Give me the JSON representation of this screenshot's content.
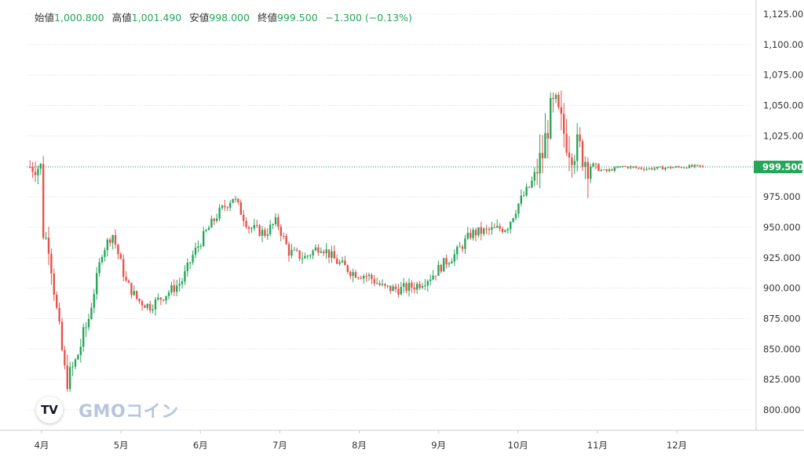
{
  "ohlc": {
    "open_label": "始値",
    "open_value": "1,000.800",
    "high_label": "高値",
    "high_value": "1,001.490",
    "low_label": "安値",
    "low_value": "998.000",
    "close_label": "終値",
    "close_value": "999.500",
    "change": "−1.300 (−0.13%)"
  },
  "brand": {
    "tv_logo": "TV",
    "gmo_logo": "GMOコイン"
  },
  "colors": {
    "up": "#26a65b",
    "down": "#e5534b",
    "grid": "#d9dde3",
    "price_line": "#26a65b",
    "axis_text": "#333333"
  },
  "chart_data": {
    "type": "candlestick",
    "y_axis": {
      "ticks": [
        800,
        825,
        850,
        875,
        900,
        925,
        950,
        975,
        1000,
        1025,
        1050,
        1075,
        1100,
        1125
      ],
      "tick_labels": [
        "800.000",
        "825.000",
        "850.000",
        "875.000",
        "900.000",
        "925.000",
        "950.000",
        "975.000",
        "1,000.000",
        "1,025.000",
        "1,050.000",
        "1,075.000",
        "1,100.000",
        "1,125.000"
      ],
      "range": [
        790,
        1131
      ]
    },
    "x_axis": {
      "labels": [
        "4月",
        "5月",
        "6月",
        "7月",
        "8月",
        "9月",
        "10月",
        "11月",
        "12月"
      ]
    },
    "last_price": 999.5,
    "last_price_label": "999.500",
    "grid": true,
    "trend": [
      {
        "m": 0.0,
        "p": 947
      },
      {
        "m": 0.08,
        "p": 935
      },
      {
        "m": 0.18,
        "p": 880
      },
      {
        "m": 0.3,
        "p": 822
      },
      {
        "m": 0.42,
        "p": 840
      },
      {
        "m": 0.58,
        "p": 875
      },
      {
        "m": 0.75,
        "p": 930
      },
      {
        "m": 0.88,
        "p": 945
      },
      {
        "m": 1.05,
        "p": 905
      },
      {
        "m": 1.2,
        "p": 890
      },
      {
        "m": 1.35,
        "p": 885
      },
      {
        "m": 1.55,
        "p": 895
      },
      {
        "m": 1.75,
        "p": 905
      },
      {
        "m": 1.9,
        "p": 928
      },
      {
        "m": 2.05,
        "p": 945
      },
      {
        "m": 2.2,
        "p": 960
      },
      {
        "m": 2.4,
        "p": 975
      },
      {
        "m": 2.6,
        "p": 950
      },
      {
        "m": 2.8,
        "p": 945
      },
      {
        "m": 2.95,
        "p": 955
      },
      {
        "m": 3.1,
        "p": 930
      },
      {
        "m": 3.3,
        "p": 925
      },
      {
        "m": 3.5,
        "p": 935
      },
      {
        "m": 3.7,
        "p": 922
      },
      {
        "m": 3.9,
        "p": 913
      },
      {
        "m": 4.1,
        "p": 910
      },
      {
        "m": 4.3,
        "p": 900
      },
      {
        "m": 4.5,
        "p": 899
      },
      {
        "m": 4.7,
        "p": 902
      },
      {
        "m": 4.9,
        "p": 910
      },
      {
        "m": 5.05,
        "p": 920
      },
      {
        "m": 5.2,
        "p": 928
      },
      {
        "m": 5.4,
        "p": 945
      },
      {
        "m": 5.6,
        "p": 947
      },
      {
        "m": 5.85,
        "p": 950
      },
      {
        "m": 6.0,
        "p": 970
      },
      {
        "m": 6.15,
        "p": 985
      },
      {
        "m": 6.3,
        "p": 1010
      },
      {
        "m": 6.38,
        "p": 1040
      },
      {
        "m": 6.45,
        "p": 1050
      },
      {
        "m": 6.55,
        "p": 1030
      },
      {
        "m": 6.65,
        "p": 1015
      },
      {
        "m": 6.75,
        "p": 1015
      },
      {
        "m": 6.85,
        "p": 1005
      },
      {
        "m": 6.95,
        "p": 998
      },
      {
        "m": 7.1,
        "p": 996
      },
      {
        "m": 7.3,
        "p": 1000
      },
      {
        "m": 7.6,
        "p": 998
      },
      {
        "m": 7.9,
        "p": 999
      },
      {
        "m": 8.2,
        "p": 1000
      },
      {
        "m": 8.4,
        "p": 999.5
      }
    ]
  }
}
